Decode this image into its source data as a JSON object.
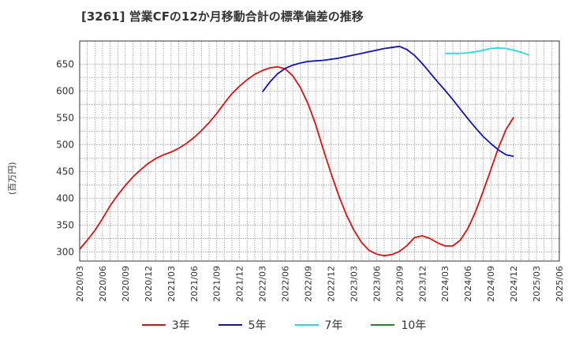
{
  "chart_data": {
    "type": "line",
    "title": "[3261]  営業CFの12か月移動合計の標準偏差の推移",
    "ylabel": "(百万円)",
    "xlabel": "",
    "ylim": [
      283,
      693
    ],
    "yticks": [
      300,
      350,
      400,
      450,
      500,
      550,
      600,
      650
    ],
    "x_tick_labels": [
      "2020/03",
      "2020/06",
      "2020/09",
      "2020/12",
      "2021/03",
      "2021/06",
      "2021/09",
      "2021/12",
      "2022/03",
      "2022/06",
      "2022/09",
      "2022/12",
      "2023/03",
      "2023/06",
      "2023/09",
      "2023/12",
      "2024/03",
      "2024/06",
      "2024/09",
      "2024/12",
      "2025/03",
      "2025/06"
    ],
    "grid": true,
    "legend_position": "bottom",
    "series": [
      {
        "name": "3年",
        "color": "#dd1111",
        "values": [
          {
            "x": "2020/03",
            "y": 305
          },
          {
            "x": "2020/04",
            "y": 322
          },
          {
            "x": "2020/05",
            "y": 340
          },
          {
            "x": "2020/06",
            "y": 362
          },
          {
            "x": "2020/07",
            "y": 386
          },
          {
            "x": "2020/08",
            "y": 406
          },
          {
            "x": "2020/09",
            "y": 424
          },
          {
            "x": "2020/10",
            "y": 440
          },
          {
            "x": "2020/11",
            "y": 453
          },
          {
            "x": "2020/12",
            "y": 465
          },
          {
            "x": "2021/01",
            "y": 474
          },
          {
            "x": "2021/02",
            "y": 481
          },
          {
            "x": "2021/03",
            "y": 486
          },
          {
            "x": "2021/04",
            "y": 493
          },
          {
            "x": "2021/05",
            "y": 502
          },
          {
            "x": "2021/06",
            "y": 513
          },
          {
            "x": "2021/07",
            "y": 526
          },
          {
            "x": "2021/08",
            "y": 541
          },
          {
            "x": "2021/09",
            "y": 558
          },
          {
            "x": "2021/10",
            "y": 577
          },
          {
            "x": "2021/11",
            "y": 595
          },
          {
            "x": "2021/12",
            "y": 609
          },
          {
            "x": "2022/01",
            "y": 621
          },
          {
            "x": "2022/02",
            "y": 631
          },
          {
            "x": "2022/03",
            "y": 638
          },
          {
            "x": "2022/04",
            "y": 643
          },
          {
            "x": "2022/05",
            "y": 645
          },
          {
            "x": "2022/06",
            "y": 641
          },
          {
            "x": "2022/07",
            "y": 628
          },
          {
            "x": "2022/08",
            "y": 606
          },
          {
            "x": "2022/09",
            "y": 576
          },
          {
            "x": "2022/10",
            "y": 537
          },
          {
            "x": "2022/11",
            "y": 491
          },
          {
            "x": "2022/12",
            "y": 447
          },
          {
            "x": "2023/01",
            "y": 406
          },
          {
            "x": "2023/02",
            "y": 370
          },
          {
            "x": "2023/03",
            "y": 341
          },
          {
            "x": "2023/04",
            "y": 318
          },
          {
            "x": "2023/05",
            "y": 303
          },
          {
            "x": "2023/06",
            "y": 296
          },
          {
            "x": "2023/07",
            "y": 293
          },
          {
            "x": "2023/08",
            "y": 295
          },
          {
            "x": "2023/09",
            "y": 301
          },
          {
            "x": "2023/10",
            "y": 312
          },
          {
            "x": "2023/11",
            "y": 327
          },
          {
            "x": "2023/12",
            "y": 330
          },
          {
            "x": "2024/01",
            "y": 325
          },
          {
            "x": "2024/02",
            "y": 317
          },
          {
            "x": "2024/03",
            "y": 311
          },
          {
            "x": "2024/04",
            "y": 311
          },
          {
            "x": "2024/05",
            "y": 322
          },
          {
            "x": "2024/06",
            "y": 344
          },
          {
            "x": "2024/07",
            "y": 375
          },
          {
            "x": "2024/08",
            "y": 413
          },
          {
            "x": "2024/09",
            "y": 453
          },
          {
            "x": "2024/10",
            "y": 494
          },
          {
            "x": "2024/11",
            "y": 528
          },
          {
            "x": "2024/12",
            "y": 551
          }
        ]
      },
      {
        "name": "5年",
        "color": "#1111bb",
        "values": [
          {
            "x": "2022/03",
            "y": 598
          },
          {
            "x": "2022/04",
            "y": 617
          },
          {
            "x": "2022/05",
            "y": 632
          },
          {
            "x": "2022/06",
            "y": 642
          },
          {
            "x": "2022/07",
            "y": 648
          },
          {
            "x": "2022/08",
            "y": 652
          },
          {
            "x": "2022/09",
            "y": 655
          },
          {
            "x": "2022/10",
            "y": 656
          },
          {
            "x": "2022/11",
            "y": 657
          },
          {
            "x": "2022/12",
            "y": 659
          },
          {
            "x": "2023/01",
            "y": 661
          },
          {
            "x": "2023/02",
            "y": 664
          },
          {
            "x": "2023/03",
            "y": 667
          },
          {
            "x": "2023/04",
            "y": 670
          },
          {
            "x": "2023/05",
            "y": 673
          },
          {
            "x": "2023/06",
            "y": 676
          },
          {
            "x": "2023/07",
            "y": 679
          },
          {
            "x": "2023/08",
            "y": 681
          },
          {
            "x": "2023/09",
            "y": 683
          },
          {
            "x": "2023/10",
            "y": 677
          },
          {
            "x": "2023/11",
            "y": 666
          },
          {
            "x": "2023/12",
            "y": 651
          },
          {
            "x": "2024/01",
            "y": 634
          },
          {
            "x": "2024/02",
            "y": 617
          },
          {
            "x": "2024/03",
            "y": 601
          },
          {
            "x": "2024/04",
            "y": 584
          },
          {
            "x": "2024/05",
            "y": 566
          },
          {
            "x": "2024/06",
            "y": 548
          },
          {
            "x": "2024/07",
            "y": 531
          },
          {
            "x": "2024/08",
            "y": 515
          },
          {
            "x": "2024/09",
            "y": 502
          },
          {
            "x": "2024/10",
            "y": 490
          },
          {
            "x": "2024/11",
            "y": 481
          },
          {
            "x": "2024/12",
            "y": 478
          }
        ]
      },
      {
        "name": "7年",
        "color": "#22dddd",
        "values": [
          {
            "x": "2024/03",
            "y": 670
          },
          {
            "x": "2024/04",
            "y": 670
          },
          {
            "x": "2024/05",
            "y": 670
          },
          {
            "x": "2024/06",
            "y": 671
          },
          {
            "x": "2024/07",
            "y": 673
          },
          {
            "x": "2024/08",
            "y": 676
          },
          {
            "x": "2024/09",
            "y": 679
          },
          {
            "x": "2024/10",
            "y": 680
          },
          {
            "x": "2024/11",
            "y": 679
          },
          {
            "x": "2024/12",
            "y": 676
          },
          {
            "x": "2025/01",
            "y": 672
          },
          {
            "x": "2025/02",
            "y": 667
          }
        ]
      },
      {
        "name": "10年",
        "color": "#228822",
        "values": []
      }
    ]
  }
}
